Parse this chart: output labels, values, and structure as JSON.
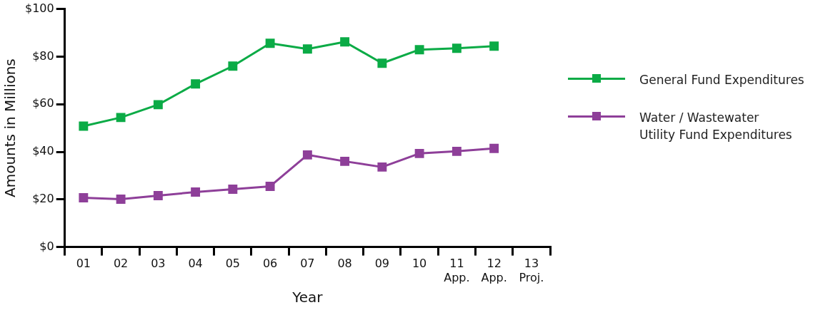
{
  "chart_data": {
    "type": "line",
    "xlabel": "Year",
    "ylabel": "Amounts in Millions",
    "categories": [
      "01",
      "02",
      "03",
      "04",
      "05",
      "06",
      "07",
      "08",
      "09",
      "10",
      "11\nApp.",
      "12\nApp.",
      "13\nProj."
    ],
    "series": [
      {
        "name": "General Fund Expenditures",
        "color": "#0bab46",
        "values": [
          50.8,
          54.4,
          59.8,
          68.5,
          76,
          85.6,
          83.2,
          86.2,
          77.2,
          82.9,
          83.5,
          84.4,
          null
        ]
      },
      {
        "name": "Water / Wastewater\nUtility Fund Expenditures",
        "color": "#8e3f99",
        "values": [
          20.7,
          20.1,
          21.6,
          23.1,
          24.3,
          25.5,
          38.7,
          36,
          33.6,
          39.3,
          40.2,
          41.4,
          null
        ]
      }
    ],
    "ylim": [
      0,
      100
    ],
    "yticks": [
      {
        "value": 0,
        "label": "$0"
      },
      {
        "value": 20,
        "label": "$20"
      },
      {
        "value": 40,
        "label": "$40"
      },
      {
        "value": 60,
        "label": "$60"
      },
      {
        "value": 80,
        "label": "$80"
      },
      {
        "value": 100,
        "label": "$100"
      }
    ],
    "grid": false,
    "legend": "right",
    "marker": "square",
    "line_style": "solid"
  }
}
